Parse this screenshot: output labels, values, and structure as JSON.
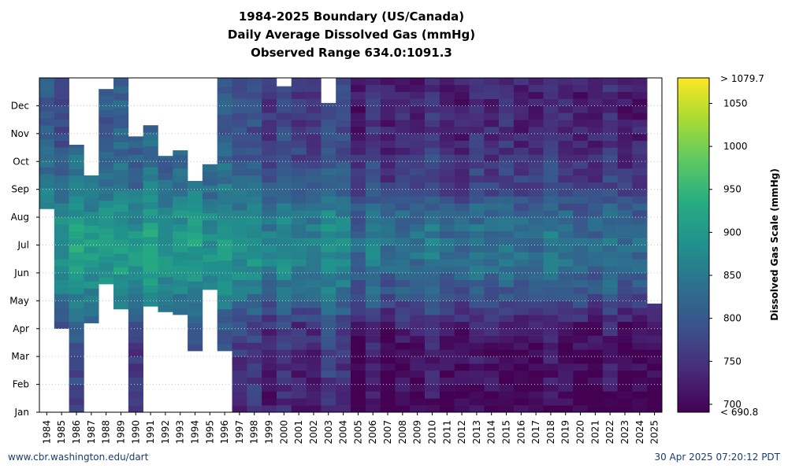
{
  "chart_data": {
    "type": "heatmap",
    "title": "1984-2025 Boundary (US/Canada)",
    "subtitle": "Daily Average Dissolved Gas (mmHg)",
    "range_note": "Observed Range 634.0:1091.3",
    "colorbar_label": "Dissolved Gas Scale (mmHg)",
    "colorbar_ticks": [
      700,
      750,
      800,
      850,
      900,
      950,
      1000,
      1050
    ],
    "colorbar_top_label": "> 1079.7",
    "colorbar_bottom_label": "< 690.8",
    "color_range": [
      690.8,
      1079.7
    ],
    "colormap": "viridis",
    "x_years": [
      1984,
      1985,
      1986,
      1987,
      1988,
      1989,
      1990,
      1991,
      1992,
      1993,
      1994,
      1995,
      1996,
      1997,
      1998,
      1999,
      2000,
      2001,
      2002,
      2003,
      2004,
      2005,
      2006,
      2007,
      2008,
      2009,
      2010,
      2011,
      2012,
      2013,
      2014,
      2015,
      2016,
      2017,
      2018,
      2019,
      2020,
      2021,
      2022,
      2023,
      2024,
      2025
    ],
    "y_months": [
      "Jan",
      "Feb",
      "Mar",
      "Apr",
      "May",
      "Jun",
      "Jul",
      "Aug",
      "Sep",
      "Oct",
      "Nov",
      "Dec"
    ],
    "grid": true,
    "coverage_note": "approximate per-year data coverage in fractional month units (0 = Jan 1, 12 = Dec 31)",
    "coverage": [
      {
        "year": 1984,
        "start": 7.3,
        "end": 12.0
      },
      {
        "year": 1985,
        "start": 3.0,
        "end": 12.0
      },
      {
        "year": 1986,
        "start": 0.0,
        "end": 9.6
      },
      {
        "year": 1987,
        "start": 3.2,
        "end": 8.5
      },
      {
        "year": 1988,
        "start": 4.6,
        "end": 11.6
      },
      {
        "year": 1989,
        "start": 3.7,
        "end": 12.0
      },
      {
        "year": 1990,
        "start": 0.0,
        "end": 9.9
      },
      {
        "year": 1991,
        "start": 3.8,
        "end": 10.3
      },
      {
        "year": 1992,
        "start": 3.6,
        "end": 9.2
      },
      {
        "year": 1993,
        "start": 3.5,
        "end": 9.4
      },
      {
        "year": 1994,
        "start": 2.2,
        "end": 8.3
      },
      {
        "year": 1995,
        "start": 4.4,
        "end": 8.9
      },
      {
        "year": 1996,
        "start": 2.2,
        "end": 12.0
      },
      {
        "year": 1997,
        "start": 0.0,
        "end": 12.0
      },
      {
        "year": 1998,
        "start": 0.0,
        "end": 12.0
      },
      {
        "year": 1999,
        "start": 0.0,
        "end": 12.0
      },
      {
        "year": 2000,
        "start": 0.0,
        "end": 11.7
      },
      {
        "year": 2001,
        "start": 0.0,
        "end": 12.0
      },
      {
        "year": 2002,
        "start": 0.0,
        "end": 12.0
      },
      {
        "year": 2003,
        "start": 0.0,
        "end": 11.1
      },
      {
        "year": 2004,
        "start": 0.0,
        "end": 12.0
      },
      {
        "year": 2005,
        "start": 0.0,
        "end": 12.0
      },
      {
        "year": 2006,
        "start": 0.0,
        "end": 12.0
      },
      {
        "year": 2007,
        "start": 0.0,
        "end": 12.0
      },
      {
        "year": 2008,
        "start": 0.0,
        "end": 12.0
      },
      {
        "year": 2009,
        "start": 0.0,
        "end": 12.0
      },
      {
        "year": 2010,
        "start": 0.0,
        "end": 12.0
      },
      {
        "year": 2011,
        "start": 0.0,
        "end": 12.0
      },
      {
        "year": 2012,
        "start": 0.0,
        "end": 12.0
      },
      {
        "year": 2013,
        "start": 0.0,
        "end": 12.0
      },
      {
        "year": 2014,
        "start": 0.0,
        "end": 12.0
      },
      {
        "year": 2015,
        "start": 0.0,
        "end": 12.0
      },
      {
        "year": 2016,
        "start": 0.0,
        "end": 12.0
      },
      {
        "year": 2017,
        "start": 0.0,
        "end": 12.0
      },
      {
        "year": 2018,
        "start": 0.0,
        "end": 12.0
      },
      {
        "year": 2019,
        "start": 0.0,
        "end": 12.0
      },
      {
        "year": 2020,
        "start": 0.0,
        "end": 12.0
      },
      {
        "year": 2021,
        "start": 0.0,
        "end": 12.0
      },
      {
        "year": 2022,
        "start": 0.0,
        "end": 12.0
      },
      {
        "year": 2023,
        "start": 0.0,
        "end": 12.0
      },
      {
        "year": 2024,
        "start": 0.0,
        "end": 12.0
      },
      {
        "year": 2025,
        "start": 0.0,
        "end": 3.9
      }
    ],
    "seasonal_typical_mmHg": [
      735,
      745,
      745,
      770,
      830,
      870,
      880,
      855,
      810,
      790,
      775,
      770
    ]
  },
  "footer": {
    "source": "www.cbr.washington.edu/dart",
    "timestamp": "30 Apr 2025 07:20:12 PDT"
  },
  "colors": {
    "grid": "#c8c8c8",
    "axis": "#000000"
  }
}
